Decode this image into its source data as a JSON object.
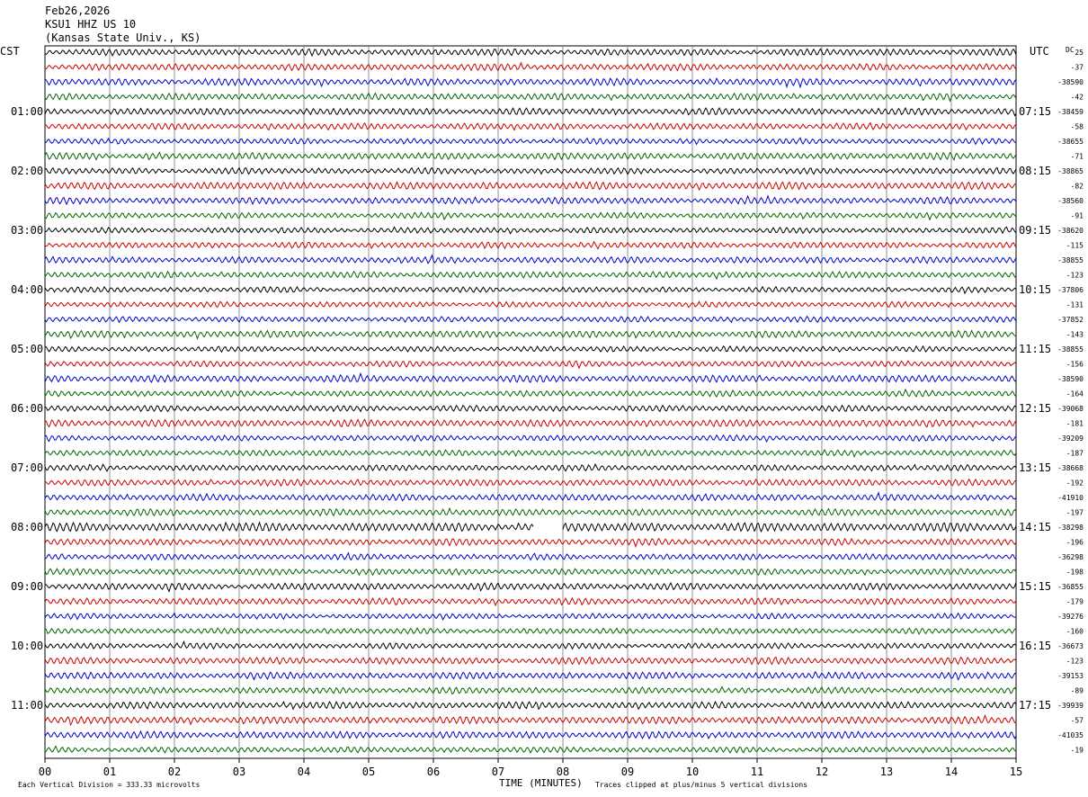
{
  "header": {
    "date": "Feb26,2026",
    "station": "KSU1 HHZ US 10",
    "location": "(Kansas State Univ., KS)"
  },
  "left_zone": "CST",
  "right_zone": "UTC",
  "dc_label": "DC",
  "footer": {
    "scale_note": "Each Vertical Division =  333.33 microvolts",
    "axis_title": "TIME (MINUTES)",
    "clip_note": "Traces clipped at plus/minus 5 vertical divisions"
  },
  "chart_data": {
    "type": "line",
    "xlabel": "TIME (MINUTES)",
    "xlim": [
      0,
      15
    ],
    "x_ticks": [
      "00",
      "01",
      "02",
      "03",
      "04",
      "05",
      "06",
      "07",
      "08",
      "09",
      "10",
      "11",
      "12",
      "13",
      "14",
      "15"
    ],
    "left_hour_labels": [
      "01:00",
      "02:00",
      "03:00",
      "04:00",
      "05:00",
      "06:00",
      "07:00",
      "08:00",
      "09:00",
      "10:00",
      "11:00"
    ],
    "right_hour_labels": [
      "07:15",
      "08:15",
      "09:15",
      "10:15",
      "11:15",
      "12:15",
      "13:15",
      "14:15",
      "15:15",
      "16:15",
      "17:15"
    ],
    "dc_offsets": [
      "25",
      "-37",
      "-38590",
      "-42",
      "-38459",
      "-58",
      "-38655",
      "-71",
      "-38865",
      "-82",
      "-38560",
      "-91",
      "-38620",
      "-115",
      "-38855",
      "-123",
      "-37806",
      "-131",
      "-37852",
      "-143",
      "-38855",
      "-156",
      "-38590",
      "-164",
      "-39068",
      "-181",
      "-39209",
      "-187",
      "-38668",
      "-192",
      "-41910",
      "-197",
      "-38298",
      "-196",
      "-36298",
      "-198",
      "-36855",
      "-179",
      "-39276",
      "-160",
      "-36673",
      "-123",
      "-39153",
      "-89",
      "-39939",
      "-57",
      "-41035",
      "-19"
    ],
    "trace_colors": [
      "#000000",
      "#cc0000",
      "#0000cc",
      "#006600"
    ],
    "trace_count": 48,
    "minutes_per_trace": 15,
    "grid": "vertical",
    "gap": {
      "trace": 32,
      "x": [
        7.55,
        8.0
      ]
    }
  }
}
